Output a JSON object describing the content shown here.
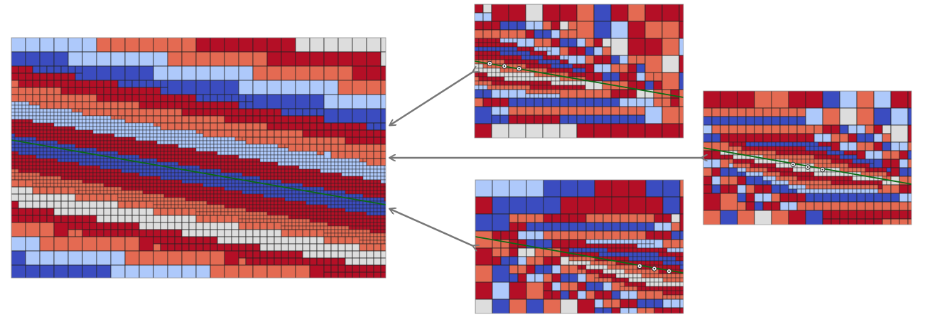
{
  "palette": {
    "light_blue": "#aec9fb",
    "blue": "#3b4cc0",
    "dark_red": "#b40f26",
    "salmon": "#e46a52",
    "light_gray": "#dddddd",
    "grid_line": "#222222",
    "interface_line": "#0b6b14",
    "arrow": "#777777"
  },
  "stripe_sequence": [
    "light_blue",
    "dark_red",
    "blue",
    "dark_red",
    "salmon",
    "light_gray",
    "dark_red",
    "salmon",
    "light_blue",
    "blue",
    "dark_red",
    "salmon"
  ],
  "panels": [
    {
      "id": "main-mesh",
      "mode": "line"
    },
    {
      "id": "zoom-top",
      "mode": "point"
    },
    {
      "id": "zoom-right",
      "mode": "point"
    },
    {
      "id": "zoom-bottom",
      "mode": "point"
    }
  ]
}
